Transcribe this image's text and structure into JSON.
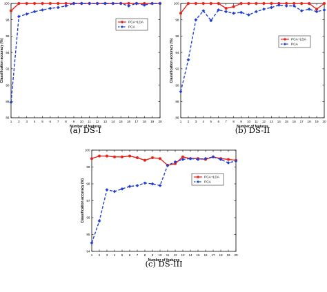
{
  "colors": {
    "pca_lda": "#e8231c",
    "pca": "#1f3fd4"
  },
  "chart_data": [
    {
      "id": "a",
      "type": "line",
      "caption": "(a)  DS-I",
      "xlabel": "Number of features",
      "ylabel": "Classification accuracy (%)",
      "x": [
        1,
        2,
        3,
        4,
        5,
        6,
        7,
        8,
        9,
        10,
        11,
        12,
        13,
        14,
        15,
        16,
        17,
        18,
        19,
        20
      ],
      "xlim": [
        1,
        20
      ],
      "ylim": [
        86,
        100
      ],
      "yticks": [
        86,
        88,
        90,
        92,
        94,
        96,
        98,
        100
      ],
      "grid": false,
      "legend": "upper-right",
      "series": [
        {
          "name": "PCA+LDA",
          "color": "#e8231c",
          "marker": "circle",
          "dash": "solid",
          "values": [
            99.1,
            100,
            100,
            100,
            100,
            100,
            100,
            100,
            100,
            100,
            100,
            100,
            100,
            100,
            100,
            100,
            100,
            100,
            100,
            100
          ]
        },
        {
          "name": "PCA",
          "color": "#1f3fd4",
          "marker": "diamond",
          "dash": "dashed",
          "values": [
            87.9,
            98.4,
            98.7,
            99.0,
            99.2,
            99.4,
            99.5,
            99.7,
            100,
            100,
            100,
            100,
            100,
            100,
            100,
            99.7,
            100,
            99.8,
            100,
            100
          ]
        }
      ]
    },
    {
      "id": "b",
      "type": "line",
      "caption": "(b)  DS-II",
      "xlabel": "Number of features",
      "ylabel": "Classification accuracy (%)",
      "x": [
        1,
        2,
        3,
        4,
        5,
        6,
        7,
        8,
        9,
        10,
        11,
        12,
        13,
        14,
        15,
        16,
        17,
        18,
        19,
        20
      ],
      "xlim": [
        1,
        20
      ],
      "ylim": [
        86,
        100
      ],
      "yticks": [
        86,
        88,
        90,
        92,
        94,
        96,
        98,
        100
      ],
      "grid": false,
      "legend": "upper-right",
      "series": [
        {
          "name": "PCA+LDA",
          "color": "#e8231c",
          "marker": "circle",
          "dash": "solid",
          "values": [
            98.8,
            100,
            100,
            100,
            100,
            100,
            99.4,
            99.6,
            100,
            100,
            100,
            100,
            100,
            100,
            100,
            100,
            100,
            100,
            99.3,
            100
          ]
        },
        {
          "name": "PCA",
          "color": "#1f3fd4",
          "marker": "diamond",
          "dash": "dashed",
          "values": [
            89.2,
            93.1,
            98.0,
            99.1,
            97.9,
            99.2,
            99.0,
            98.8,
            98.9,
            98.6,
            99.0,
            99.3,
            99.5,
            99.8,
            99.7,
            99.7,
            99.1,
            99.3,
            99.0,
            99.2
          ]
        }
      ]
    },
    {
      "id": "c",
      "type": "line",
      "caption": "(c)  DS-III",
      "xlabel": "Number of features",
      "ylabel": "Classification accuracy (%)",
      "x": [
        1,
        2,
        3,
        4,
        5,
        6,
        7,
        8,
        9,
        10,
        11,
        12,
        13,
        14,
        15,
        16,
        17,
        18,
        19,
        20
      ],
      "xlim": [
        1,
        20
      ],
      "ylim": [
        94,
        100
      ],
      "yticks": [
        94,
        95,
        96,
        97,
        98,
        99,
        100
      ],
      "grid": false,
      "legend": "upper-right",
      "series": [
        {
          "name": "PCA+LDA",
          "color": "#e8231c",
          "marker": "circle",
          "dash": "solid",
          "values": [
            99.5,
            99.65,
            99.65,
            99.6,
            99.6,
            99.65,
            99.55,
            99.4,
            99.55,
            99.5,
            99.1,
            99.2,
            99.6,
            99.5,
            99.5,
            99.45,
            99.6,
            99.5,
            99.45,
            99.4
          ]
        },
        {
          "name": "PCA",
          "color": "#1f3fd4",
          "marker": "diamond",
          "dash": "dashed",
          "values": [
            94.5,
            95.8,
            97.65,
            97.55,
            97.7,
            97.85,
            97.9,
            98.05,
            98.0,
            97.9,
            99.1,
            99.3,
            99.45,
            99.5,
            99.45,
            99.5,
            99.6,
            99.45,
            99.25,
            99.35
          ]
        }
      ]
    }
  ]
}
